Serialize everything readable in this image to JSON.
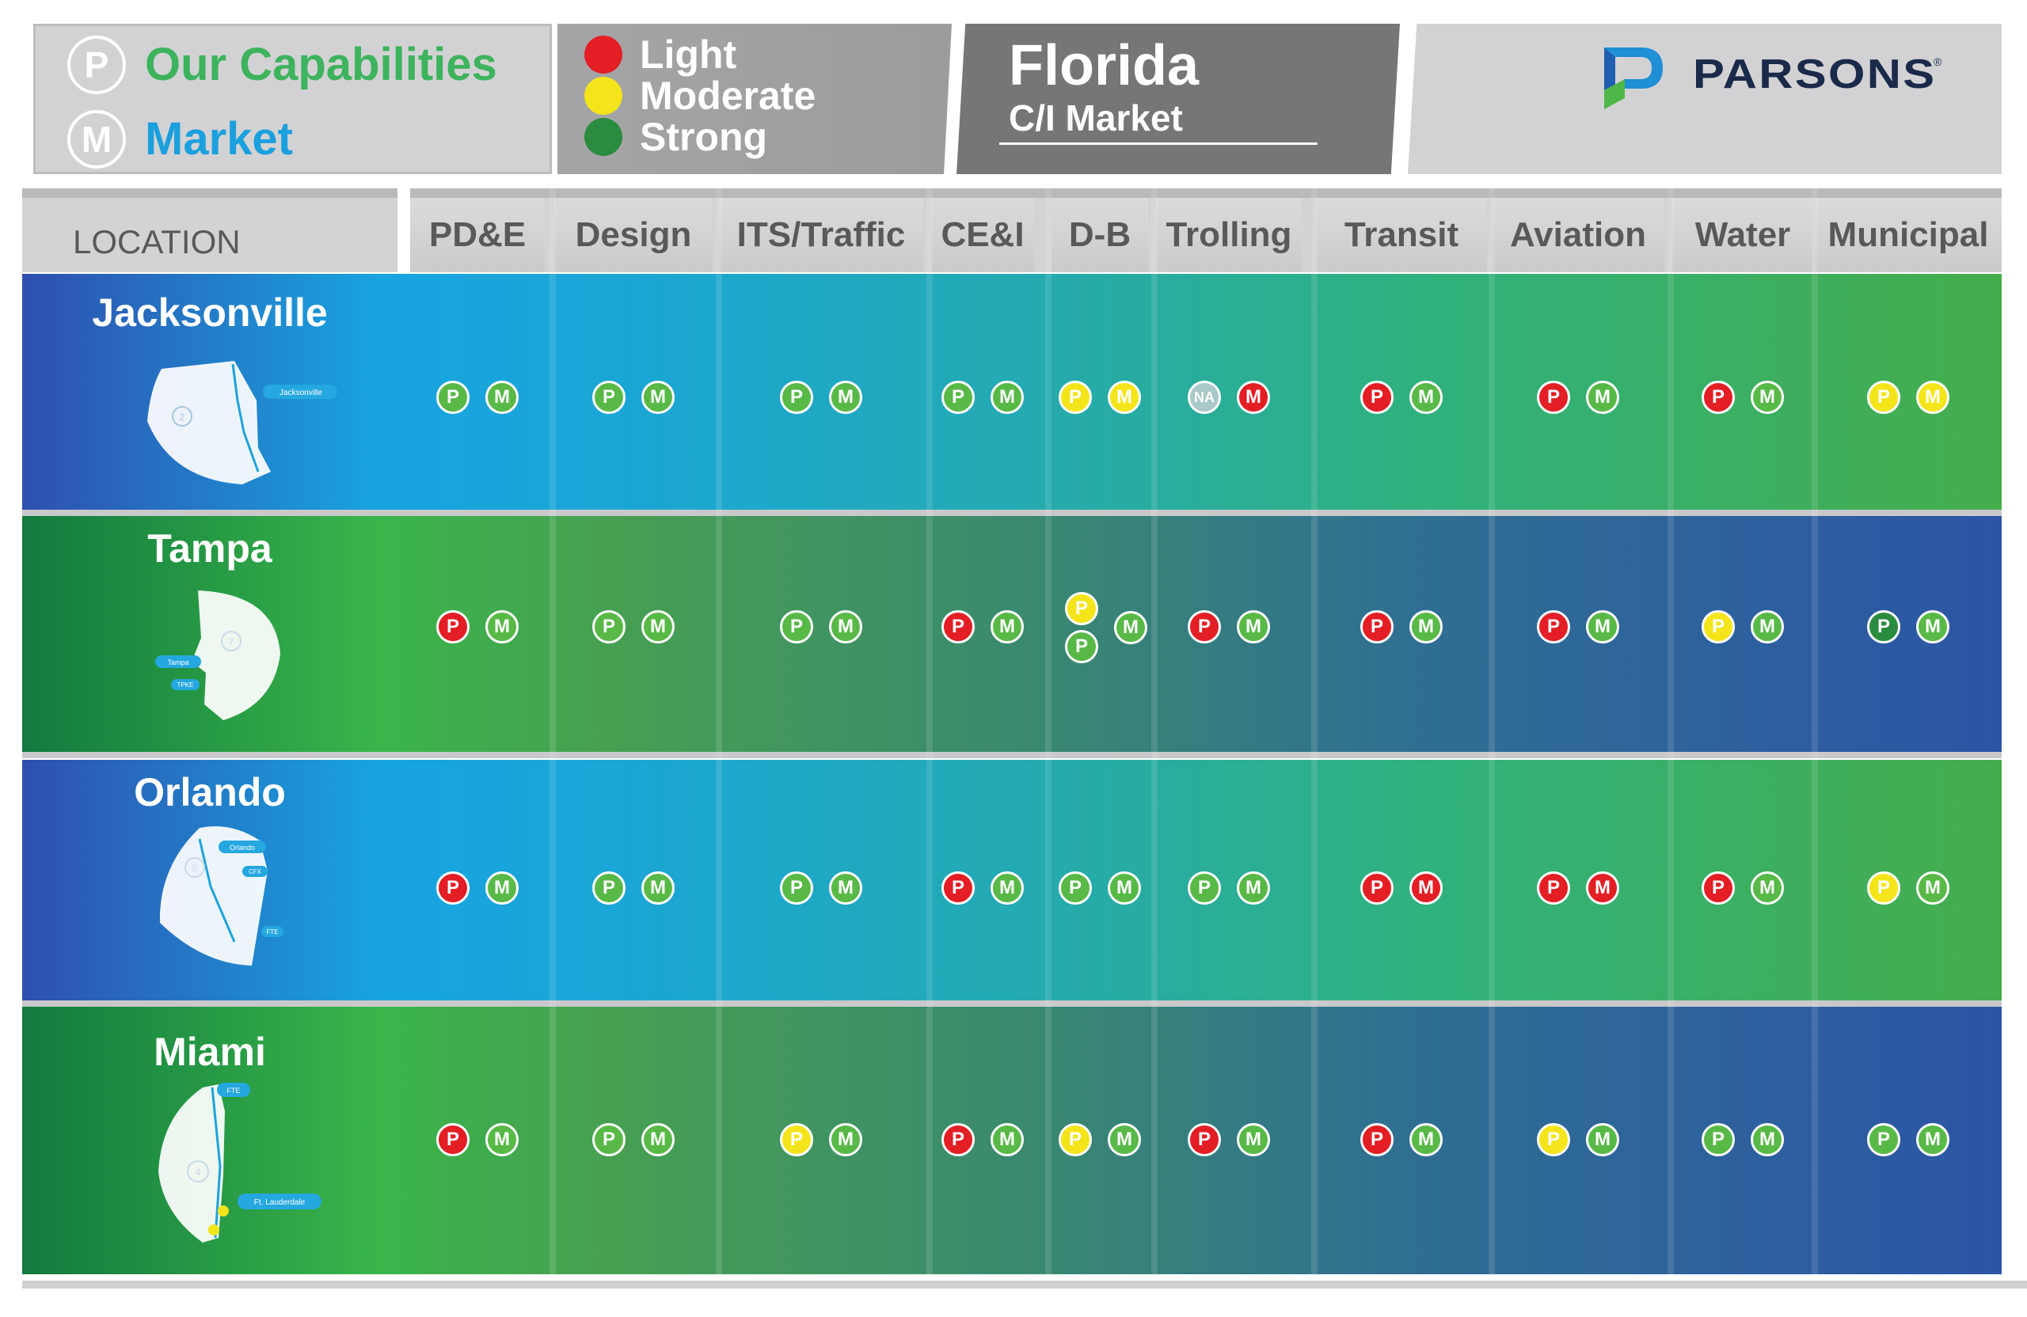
{
  "legend": {
    "capabilities_label": "Our Capabilities",
    "market_label": "Market",
    "capabilities_icon": "P",
    "market_icon": "M"
  },
  "status_legend": [
    {
      "label": "Light",
      "color": "#e31e24"
    },
    {
      "label": "Moderate",
      "color": "#f4e51b"
    },
    {
      "label": "Strong",
      "color": "#2a8c3e"
    }
  ],
  "title": {
    "main": "Florida",
    "sub": "C/I  Market"
  },
  "logo": {
    "name": "PARSONS",
    "reg": "®"
  },
  "table": {
    "location_header": "LOCATION",
    "columns": [
      "PD&E",
      "Design",
      "ITS/Traffic",
      "CE&I",
      "D-B",
      "Trolling",
      "Transit",
      "Aviation",
      "Water",
      "Municipal"
    ],
    "rows": [
      {
        "location": "Jacksonville",
        "map_labels": [
          "Jacksonville",
          "2"
        ],
        "cells": [
          {
            "p": "green",
            "m": "green"
          },
          {
            "p": "green",
            "m": "green"
          },
          {
            "p": "green",
            "m": "green"
          },
          {
            "p": "green",
            "m": "green"
          },
          {
            "p": "yellow",
            "m": "yellow"
          },
          {
            "p": "na",
            "m": "red"
          },
          {
            "p": "red",
            "m": "green"
          },
          {
            "p": "red",
            "m": "green"
          },
          {
            "p": "red",
            "m": "green"
          },
          {
            "p": "yellow",
            "m": "yellow"
          }
        ]
      },
      {
        "location": "Tampa",
        "map_labels": [
          "Tampa",
          "7",
          "TPKE"
        ],
        "cells": [
          {
            "p": "red",
            "m": "green"
          },
          {
            "p": "green",
            "m": "green"
          },
          {
            "p": "green",
            "m": "green"
          },
          {
            "p": "red",
            "m": "green"
          },
          {
            "p": "yellow",
            "p2": "green",
            "m": "green"
          },
          {
            "p": "red",
            "m": "green"
          },
          {
            "p": "red",
            "m": "green"
          },
          {
            "p": "red",
            "m": "green"
          },
          {
            "p": "yellow",
            "m": "green"
          },
          {
            "p": "dkgreen",
            "m": "green"
          }
        ]
      },
      {
        "location": "Orlando",
        "map_labels": [
          "Orlando",
          "5",
          "CFX",
          "FTE"
        ],
        "cells": [
          {
            "p": "red",
            "m": "green"
          },
          {
            "p": "green",
            "m": "green"
          },
          {
            "p": "green",
            "m": "green"
          },
          {
            "p": "red",
            "m": "green"
          },
          {
            "p": "green",
            "m": "green"
          },
          {
            "p": "green",
            "m": "green"
          },
          {
            "p": "red",
            "m": "red"
          },
          {
            "p": "red",
            "m": "red"
          },
          {
            "p": "red",
            "m": "green"
          },
          {
            "p": "yellow",
            "m": "green"
          }
        ]
      },
      {
        "location": "Miami",
        "map_labels": [
          "Ft. Lauderdale",
          "4",
          "FTE"
        ],
        "cells": [
          {
            "p": "red",
            "m": "green"
          },
          {
            "p": "green",
            "m": "green"
          },
          {
            "p": "yellow",
            "m": "green"
          },
          {
            "p": "red",
            "m": "green"
          },
          {
            "p": "yellow",
            "m": "green"
          },
          {
            "p": "red",
            "m": "green"
          },
          {
            "p": "red",
            "m": "green"
          },
          {
            "p": "yellow",
            "m": "green"
          },
          {
            "p": "green",
            "m": "green"
          },
          {
            "p": "green",
            "m": "green"
          }
        ]
      }
    ]
  },
  "icon_letters": {
    "p": "P",
    "m": "M",
    "na": "NA"
  }
}
